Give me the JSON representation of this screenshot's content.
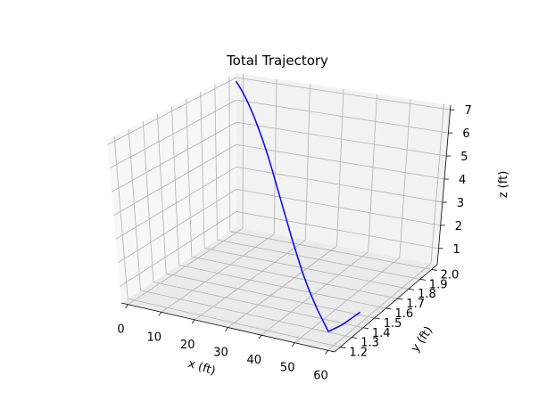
{
  "chart_data": {
    "type": "line",
    "title": "Total Trajectory",
    "xlabel": "x (ft)",
    "ylabel": "y (ft)",
    "zlabel": "z (ft)",
    "x_ticks": [
      "0",
      "10",
      "20",
      "30",
      "40",
      "50",
      "60"
    ],
    "y_ticks": [
      "1.2",
      "1.3",
      "1.4",
      "1.5",
      "1.6",
      "1.7",
      "1.8",
      "1.9",
      "2.0"
    ],
    "z_ticks": [
      "1",
      "2",
      "3",
      "4",
      "5",
      "6",
      "7"
    ],
    "xlim": [
      -2,
      62
    ],
    "ylim": [
      1.15,
      2.05
    ],
    "zlim": [
      0.3,
      7.2
    ],
    "grid": true,
    "series": [
      {
        "color": "#0000ff",
        "x": [
          0,
          3,
          6,
          9,
          12,
          15,
          18,
          21,
          24,
          27,
          30,
          33,
          36,
          39,
          42,
          45,
          48,
          51,
          54,
          57,
          59,
          61
        ],
        "y": [
          2.0,
          1.96,
          1.92,
          1.88,
          1.84,
          1.8,
          1.76,
          1.72,
          1.68,
          1.64,
          1.6,
          1.56,
          1.52,
          1.48,
          1.44,
          1.4,
          1.36,
          1.32,
          1.28,
          1.24,
          1.3,
          1.4
        ],
        "z": [
          7.05,
          6.95,
          6.8,
          6.6,
          6.35,
          6.05,
          5.7,
          5.3,
          4.85,
          4.35,
          3.85,
          3.35,
          2.85,
          2.4,
          1.95,
          1.6,
          1.3,
          1.05,
          0.85,
          0.65,
          0.75,
          0.95
        ]
      }
    ]
  }
}
